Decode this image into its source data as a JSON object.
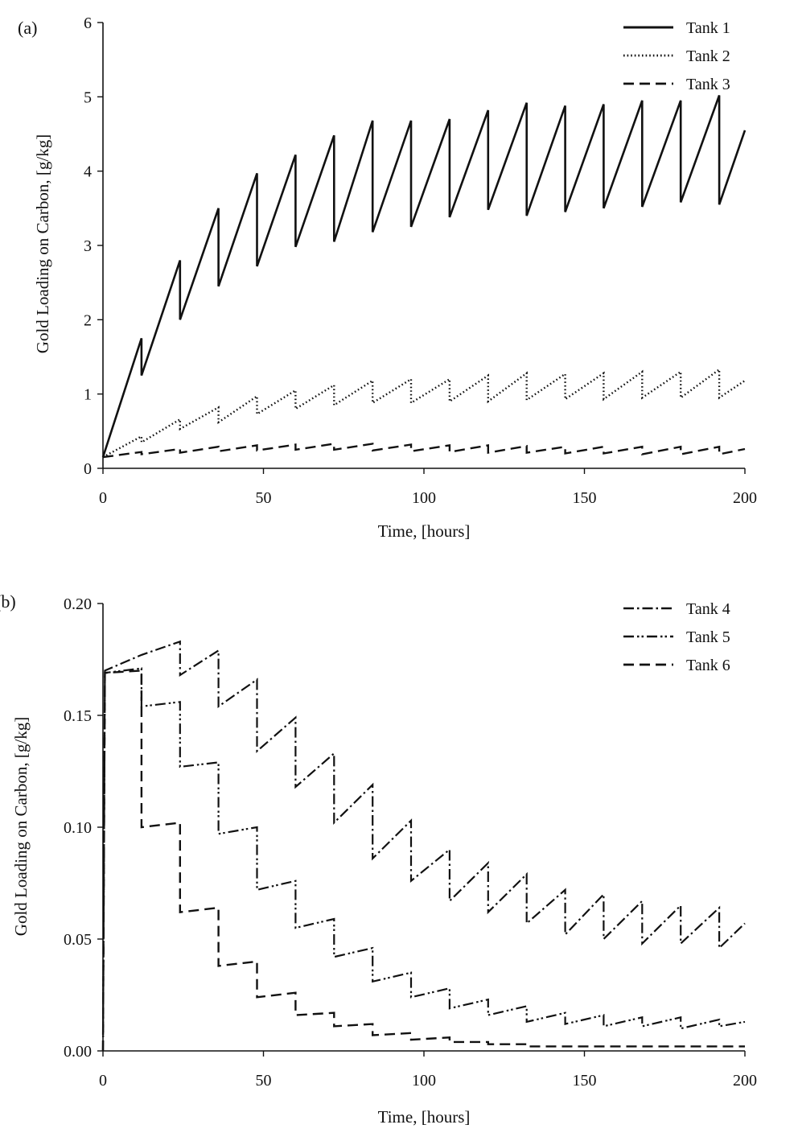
{
  "chart_data": [
    {
      "panel_label": "(a)",
      "type": "line",
      "xlabel": "Time, [hours]",
      "ylabel": "Gold Loading on Carbon, [g/kg]",
      "xlim": [
        0,
        200
      ],
      "ylim": [
        0,
        6
      ],
      "xticks": [
        0,
        50,
        100,
        150,
        200
      ],
      "yticks": [
        0,
        1,
        2,
        3,
        4,
        5,
        6
      ],
      "xtick_labels": [
        "0",
        "50",
        "100",
        "150",
        "200"
      ],
      "ytick_labels": [
        "0",
        "1",
        "2",
        "3",
        "4",
        "5",
        "6"
      ],
      "grid": false,
      "legend_position": "top-right",
      "series": [
        {
          "name": "Tank 1",
          "style": "solid",
          "x": [
            0,
            12,
            12,
            24,
            24,
            36,
            36,
            48,
            48,
            60,
            60,
            72,
            72,
            84,
            84,
            96,
            96,
            108,
            108,
            120,
            120,
            132,
            132,
            144,
            144,
            156,
            156,
            168,
            168,
            180,
            180,
            192,
            192,
            200
          ],
          "y": [
            0.15,
            1.75,
            1.25,
            2.8,
            2.0,
            3.5,
            2.45,
            3.97,
            2.72,
            4.22,
            2.98,
            4.48,
            3.05,
            4.68,
            3.18,
            4.68,
            3.25,
            4.7,
            3.38,
            4.82,
            3.48,
            4.92,
            3.4,
            4.88,
            3.45,
            4.9,
            3.5,
            4.95,
            3.52,
            4.95,
            3.58,
            5.02,
            3.55,
            4.55
          ]
        },
        {
          "name": "Tank 2",
          "style": "dotted",
          "x": [
            0,
            12,
            12,
            24,
            24,
            36,
            36,
            48,
            48,
            60,
            60,
            72,
            72,
            84,
            84,
            96,
            96,
            108,
            108,
            120,
            120,
            132,
            132,
            144,
            144,
            156,
            156,
            168,
            168,
            180,
            180,
            192,
            192,
            200
          ],
          "y": [
            0.15,
            0.43,
            0.35,
            0.66,
            0.53,
            0.82,
            0.62,
            0.97,
            0.73,
            1.05,
            0.8,
            1.12,
            0.85,
            1.18,
            0.88,
            1.2,
            0.88,
            1.2,
            0.9,
            1.25,
            0.9,
            1.28,
            0.92,
            1.27,
            0.93,
            1.28,
            0.93,
            1.3,
            0.95,
            1.3,
            0.95,
            1.33,
            0.95,
            1.18
          ]
        },
        {
          "name": "Tank 3",
          "style": "dashed",
          "x": [
            0,
            12,
            12,
            24,
            24,
            36,
            36,
            48,
            48,
            60,
            60,
            72,
            72,
            84,
            84,
            96,
            96,
            108,
            108,
            120,
            120,
            132,
            132,
            144,
            144,
            156,
            156,
            168,
            168,
            180,
            180,
            192,
            192,
            200
          ],
          "y": [
            0.15,
            0.22,
            0.19,
            0.26,
            0.21,
            0.29,
            0.23,
            0.31,
            0.24,
            0.32,
            0.25,
            0.33,
            0.25,
            0.33,
            0.24,
            0.32,
            0.23,
            0.31,
            0.22,
            0.31,
            0.21,
            0.3,
            0.21,
            0.29,
            0.2,
            0.29,
            0.2,
            0.29,
            0.19,
            0.29,
            0.19,
            0.29,
            0.19,
            0.26
          ]
        }
      ]
    },
    {
      "panel_label": "(b)",
      "type": "line",
      "xlabel": "Time, [hours]",
      "ylabel": "Gold Loading on Carbon, [g/kg]",
      "xlim": [
        0,
        200
      ],
      "ylim": [
        0,
        0.2
      ],
      "xticks": [
        0,
        50,
        100,
        150,
        200
      ],
      "yticks": [
        0,
        0.05,
        0.1,
        0.15,
        0.2
      ],
      "xtick_labels": [
        "0",
        "50",
        "100",
        "150",
        "200"
      ],
      "ytick_labels": [
        "0.00",
        "0.05",
        "0.10",
        "0.15",
        "0.20"
      ],
      "grid": false,
      "legend_position": "top-right",
      "series": [
        {
          "name": "Tank 4",
          "style": "dash-dot",
          "x": [
            0,
            0.6,
            12,
            24,
            24,
            36,
            36,
            48,
            48,
            60,
            60,
            72,
            72,
            84,
            84,
            96,
            96,
            108,
            108,
            120,
            120,
            132,
            132,
            144,
            144,
            156,
            156,
            168,
            168,
            180,
            180,
            192,
            192,
            200
          ],
          "y": [
            0,
            0.17,
            0.177,
            0.183,
            0.168,
            0.179,
            0.154,
            0.166,
            0.134,
            0.149,
            0.118,
            0.133,
            0.102,
            0.119,
            0.086,
            0.103,
            0.076,
            0.09,
            0.067,
            0.084,
            0.062,
            0.079,
            0.057,
            0.072,
            0.052,
            0.07,
            0.05,
            0.067,
            0.048,
            0.065,
            0.048,
            0.064,
            0.046,
            0.057
          ]
        },
        {
          "name": "Tank 5",
          "style": "dash-dot-dot",
          "x": [
            0,
            0.6,
            12,
            12,
            24,
            24,
            36,
            36,
            48,
            48,
            60,
            60,
            72,
            72,
            84,
            84,
            96,
            96,
            108,
            108,
            120,
            120,
            132,
            132,
            144,
            144,
            156,
            156,
            168,
            168,
            180,
            180,
            192,
            192,
            200
          ],
          "y": [
            0,
            0.169,
            0.171,
            0.154,
            0.156,
            0.127,
            0.129,
            0.097,
            0.1,
            0.072,
            0.076,
            0.055,
            0.059,
            0.042,
            0.046,
            0.031,
            0.035,
            0.024,
            0.028,
            0.019,
            0.023,
            0.016,
            0.02,
            0.013,
            0.017,
            0.012,
            0.016,
            0.011,
            0.015,
            0.011,
            0.015,
            0.01,
            0.014,
            0.011,
            0.013
          ]
        },
        {
          "name": "Tank 6",
          "style": "dashed",
          "x": [
            0,
            0.6,
            12,
            12,
            24,
            24,
            36,
            36,
            48,
            48,
            60,
            60,
            72,
            72,
            84,
            84,
            96,
            96,
            108,
            108,
            120,
            120,
            132,
            132,
            144,
            144,
            156,
            156,
            168,
            168,
            180,
            180,
            192,
            192,
            200
          ],
          "y": [
            0,
            0.169,
            0.17,
            0.1,
            0.102,
            0.062,
            0.064,
            0.038,
            0.04,
            0.024,
            0.026,
            0.016,
            0.017,
            0.011,
            0.012,
            0.007,
            0.008,
            0.005,
            0.006,
            0.004,
            0.004,
            0.003,
            0.003,
            0.002,
            0.002,
            0.002,
            0.002,
            0.002,
            0.002,
            0.002,
            0.002,
            0.002,
            0.002,
            0.002,
            0.002
          ]
        }
      ]
    }
  ]
}
